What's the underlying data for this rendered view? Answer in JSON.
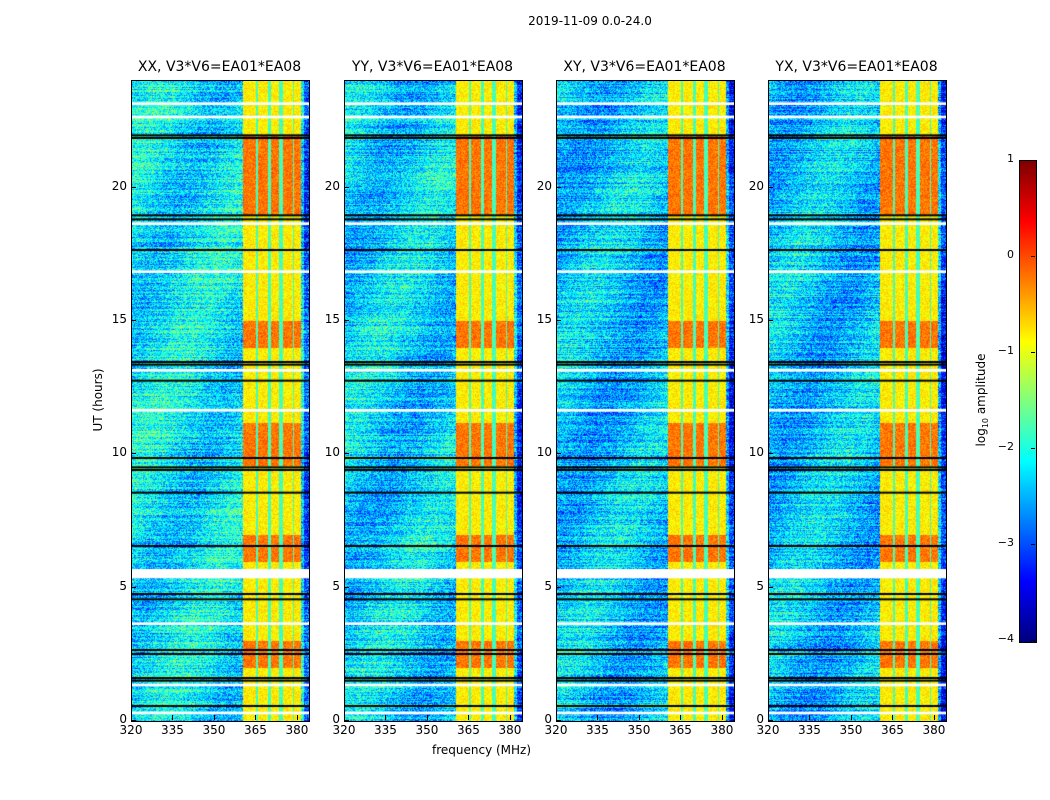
{
  "chart_data": {
    "type": "heatmap",
    "title": "2019-11-09 0.0-24.0",
    "xlabel": "frequency (MHz)",
    "ylabel": "UT (hours)",
    "colorbar_label_main": "log",
    "colorbar_label_sub": "10",
    "colorbar_label_rest": " amplitude",
    "colormap": "jet",
    "clim": [
      -4,
      1
    ],
    "colorbar_ticks": [
      1,
      0,
      -1,
      -2,
      -3,
      -4
    ],
    "xlim": [
      320,
      384
    ],
    "ylim": [
      0,
      24
    ],
    "xticks": [
      320,
      335,
      350,
      365,
      380
    ],
    "yticks": [
      0,
      5,
      10,
      15,
      20
    ],
    "panels": [
      {
        "title": "XX, V3*V6=EA01*EA08",
        "base": -2.2,
        "seed": 1
      },
      {
        "title": "YY, V3*V6=EA01*EA08",
        "base": -2.3,
        "seed": 2
      },
      {
        "title": "XY, V3*V6=EA01*EA08",
        "base": -2.4,
        "seed": 3
      },
      {
        "title": "YX, V3*V6=EA01*EA08",
        "base": -2.4,
        "seed": 4
      }
    ],
    "rfi_band_mhz": [
      360,
      381
    ],
    "rfi_subbands_mhz": [
      [
        360,
        364.5
      ],
      [
        365.5,
        369
      ],
      [
        370,
        373
      ],
      [
        374.5,
        378
      ],
      [
        378.5,
        381
      ]
    ],
    "bright_time_ranges_hours": [
      [
        19,
        22
      ],
      [
        9.6,
        11.2
      ],
      [
        14,
        15
      ],
      [
        6,
        7
      ],
      [
        2,
        3
      ]
    ],
    "flagged_black_hours": [
      22.0,
      21.9,
      19.0,
      18.85,
      17.7,
      13.5,
      13.4,
      12.8,
      9.9,
      9.55,
      9.45,
      8.6,
      6.6,
      4.8,
      4.6,
      2.7,
      2.55,
      1.65,
      1.55,
      0.6
    ],
    "flagged_white_hours": [
      [
        23.1,
        23.2
      ],
      [
        22.6,
        22.7
      ],
      [
        18.6,
        18.7
      ],
      [
        16.8,
        16.9
      ],
      [
        13.1,
        13.2
      ],
      [
        11.6,
        11.7
      ],
      [
        5.35,
        5.7
      ],
      [
        3.6,
        3.7
      ],
      [
        1.3,
        1.4
      ],
      [
        0.25,
        0.35
      ]
    ]
  }
}
